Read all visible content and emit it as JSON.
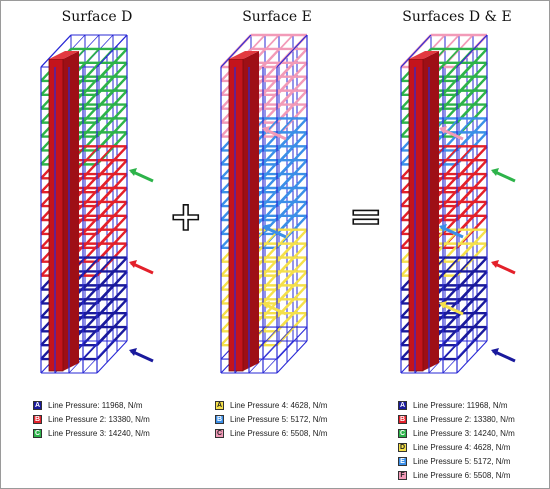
{
  "panels": [
    {
      "title": "Surface D",
      "legend": [
        {
          "letter": "A",
          "label": "Line Pressure: 11968, N/m",
          "color": "#1a1a9c"
        },
        {
          "letter": "B",
          "label": "Line Pressure 2: 13380, N/m",
          "color": "#e3202a"
        },
        {
          "letter": "C",
          "label": "Line Pressure 3: 14240, N/m",
          "color": "#2db34a"
        }
      ]
    },
    {
      "title": "Surface E",
      "legend": [
        {
          "letter": "A",
          "label": "Line Pressure 4: 4628, N/m",
          "color": "#f5e04a"
        },
        {
          "letter": "B",
          "label": "Line Pressure 5: 5172, N/m",
          "color": "#3b8fe8"
        },
        {
          "letter": "C",
          "label": "Line Pressure 6: 5508, N/m",
          "color": "#f29ab8"
        }
      ]
    },
    {
      "title": "Surfaces D & E",
      "legend": [
        {
          "letter": "A",
          "label": "Line Pressure: 11968, N/m",
          "color": "#1a1a9c"
        },
        {
          "letter": "B",
          "label": "Line Pressure 2: 13380, N/m",
          "color": "#e3202a"
        },
        {
          "letter": "C",
          "label": "Line Pressure 3: 14240, N/m",
          "color": "#2db34a"
        },
        {
          "letter": "D",
          "label": "Line Pressure 4: 4628, N/m",
          "color": "#f5e04a"
        },
        {
          "letter": "E",
          "label": "Line Pressure 5: 5172, N/m",
          "color": "#3b8fe8"
        },
        {
          "letter": "F",
          "label": "Line Pressure 6: 5508, N/m",
          "color": "#f29ab8"
        }
      ]
    }
  ],
  "operators": {
    "plus": "+",
    "equals": "="
  },
  "colors": {
    "frame": "#2a2ad6",
    "core": "#c4141c",
    "arrow": "#1a1a9c"
  }
}
